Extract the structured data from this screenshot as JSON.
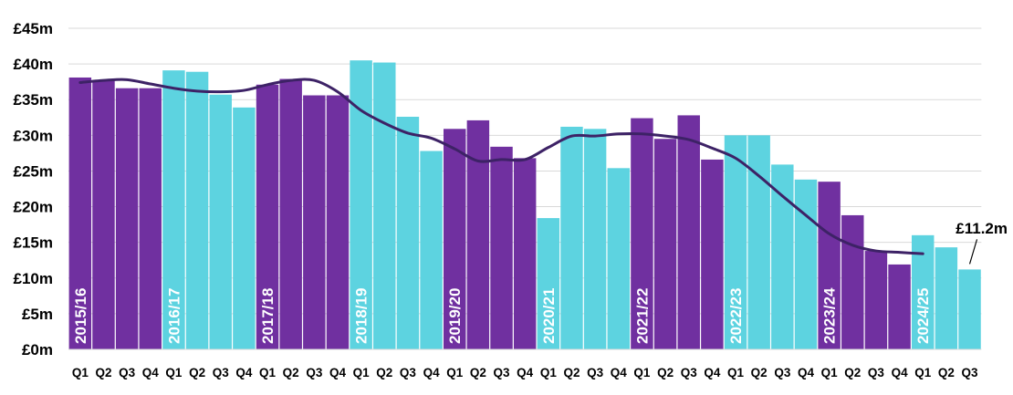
{
  "chart_data": {
    "type": "bar",
    "categories": [
      "Q1",
      "Q2",
      "Q3",
      "Q4",
      "Q1",
      "Q2",
      "Q3",
      "Q4",
      "Q1",
      "Q2",
      "Q3",
      "Q4",
      "Q1",
      "Q2",
      "Q3",
      "Q4",
      "Q1",
      "Q2",
      "Q3",
      "Q4",
      "Q1",
      "Q2",
      "Q3",
      "Q4",
      "Q1",
      "Q2",
      "Q3",
      "Q4",
      "Q1",
      "Q2",
      "Q3",
      "Q4",
      "Q1",
      "Q2",
      "Q3",
      "Q4",
      "Q1",
      "Q2",
      "Q3"
    ],
    "series": [
      {
        "type": "bar",
        "values": [
          38.1,
          37.7,
          36.6,
          36.6,
          39.1,
          38.9,
          35.7,
          33.9,
          37.1,
          37.9,
          35.6,
          35.6,
          40.5,
          40.2,
          32.6,
          27.8,
          30.9,
          32.1,
          28.4,
          26.8,
          18.4,
          31.2,
          30.9,
          25.4,
          32.4,
          29.5,
          32.8,
          26.6,
          30.0,
          30.0,
          25.9,
          23.8,
          23.5,
          18.8,
          13.8,
          11.9,
          16.0,
          14.3,
          11.2
        ]
      },
      {
        "type": "line",
        "values": [
          37.4,
          37.7,
          37.8,
          37.2,
          36.6,
          36.2,
          36.1,
          36.3,
          37.1,
          37.7,
          37.7,
          36.1,
          33.5,
          31.7,
          30.3,
          29.6,
          28.1,
          26.4,
          26.6,
          26.6,
          28.3,
          29.9,
          29.9,
          30.2,
          30.2,
          29.9,
          29.4,
          28.2,
          26.8,
          24.3,
          21.5,
          18.8,
          16.2,
          14.6,
          13.8,
          13.6,
          13.4,
          null,
          null
        ]
      }
    ],
    "year_groups": [
      {
        "label": "2015/16",
        "color": "#7030A0"
      },
      {
        "label": "2016/17",
        "color": "#5DD3E0"
      },
      {
        "label": "2017/18",
        "color": "#7030A0"
      },
      {
        "label": "2018/19",
        "color": "#5DD3E0"
      },
      {
        "label": "2019/20",
        "color": "#7030A0"
      },
      {
        "label": "2020/21",
        "color": "#5DD3E0"
      },
      {
        "label": "2021/22",
        "color": "#7030A0"
      },
      {
        "label": "2022/23",
        "color": "#5DD3E0"
      },
      {
        "label": "2023/24",
        "color": "#7030A0"
      },
      {
        "label": "2024/25",
        "color": "#5DD3E0"
      }
    ],
    "yticks": [
      "£0m",
      "£5m",
      "£10m",
      "£15m",
      "£20m",
      "£25m",
      "£30m",
      "£35m",
      "£40m",
      "£45m"
    ],
    "ylim": [
      0,
      45
    ],
    "grid": true,
    "line_color": "#3D2266",
    "annotation": {
      "text": "£11.2m",
      "index": 38
    }
  }
}
